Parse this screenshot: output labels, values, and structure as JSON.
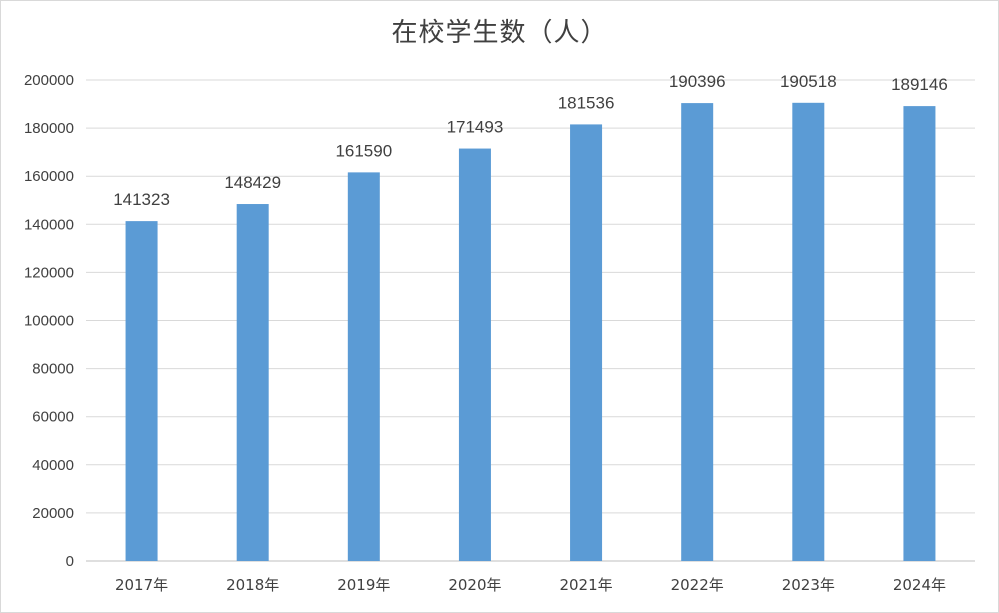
{
  "chart_data": {
    "type": "bar",
    "title": "在校学生数（人）",
    "categories": [
      "2017年",
      "2018年",
      "2019年",
      "2020年",
      "2021年",
      "2022年",
      "2023年",
      "2024年"
    ],
    "series": [
      {
        "values": [
          141323,
          148429,
          161590,
          171493,
          181536,
          190396,
          190518,
          189146
        ],
        "color": "#5b9bd5"
      }
    ],
    "ylim": [
      0,
      200000
    ],
    "yticks": [
      0,
      20000,
      40000,
      60000,
      80000,
      100000,
      120000,
      140000,
      160000,
      180000,
      200000
    ],
    "grid": true,
    "legend": "none",
    "data_labels": true
  }
}
